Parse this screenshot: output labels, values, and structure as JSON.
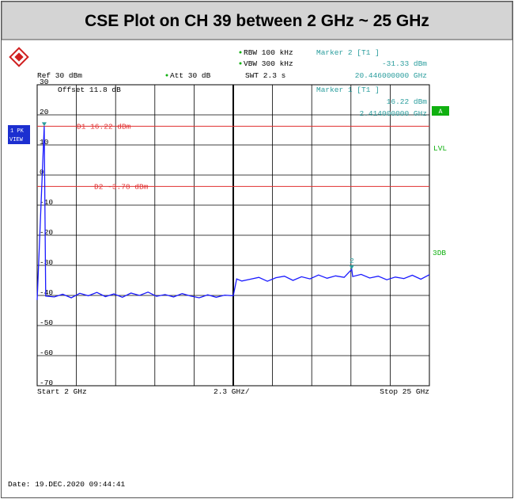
{
  "chart_data": {
    "type": "line",
    "title": "CSE Plot on CH 39 between 2 GHz ~ 25 GHz",
    "x": [
      2,
      2.414,
      2.5,
      3,
      3.5,
      4,
      4.5,
      5,
      5.5,
      6,
      6.5,
      7,
      7.5,
      8,
      8.5,
      9,
      9.5,
      10,
      10.5,
      11,
      11.5,
      12,
      12.5,
      13,
      13.5,
      13.7,
      14,
      14.5,
      15,
      15.5,
      16,
      16.5,
      17,
      17.5,
      18,
      18.5,
      19,
      19.5,
      20,
      20.446,
      20.5,
      21,
      21.5,
      22,
      22.5,
      23,
      23.5,
      24,
      24.5,
      25
    ],
    "series": [
      {
        "color": "#1a1aff",
        "values": [
          -41.5,
          16.22,
          -40.2,
          -40.5,
          -39.6,
          -40.8,
          -39.3,
          -40.1,
          -39.0,
          -40.4,
          -39.5,
          -40.6,
          -39.2,
          -40.0,
          -38.9,
          -40.3,
          -39.7,
          -40.5,
          -39.4,
          -40.2,
          -40.8,
          -39.8,
          -40.6,
          -39.9,
          -40.1,
          -34.5,
          -35.2,
          -34.6,
          -34.0,
          -35.3,
          -34.1,
          -33.6,
          -35.0,
          -33.8,
          -34.5,
          -33.2,
          -34.3,
          -33.5,
          -34.0,
          -31.33,
          -33.7,
          -33.0,
          -34.2,
          -33.6,
          -34.8,
          -33.9,
          -34.4,
          -33.3,
          -34.6,
          -33.1
        ]
      }
    ],
    "xlim": [
      2,
      25
    ],
    "ylim": [
      -70,
      30
    ],
    "yticks": [
      30,
      20,
      10,
      0,
      -10,
      -20,
      -30,
      -40,
      -50,
      -60,
      -70
    ],
    "grid": true,
    "display_lines": [
      {
        "label": "D1 16.22 dBm",
        "value": 16.22,
        "color": "#e03030"
      },
      {
        "label": "D2 -3.78 dBm",
        "value": -3.78,
        "color": "#e03030"
      }
    ],
    "markers": [
      {
        "x": 2.414,
        "value": 16.22,
        "label": "1"
      },
      {
        "x": 20.446,
        "value": -31.33,
        "label": "2"
      }
    ],
    "annotations": {
      "ref": "Ref  30 dBm",
      "att": "Att  30 dB",
      "rbw": "RBW 100 kHz",
      "vbw": "VBW 300 kHz",
      "swt": "SWT 2.3 s",
      "marker2_title": "Marker 2 [T1 ]",
      "marker2_level": "-31.33 dBm",
      "marker2_freq": "20.446000000 GHz",
      "marker1_title": "Marker 1 [T1 ]",
      "marker1_level": "16.22 dBm",
      "marker1_freq": "2.414000000 GHz",
      "offset": "Offset  11.8 dB",
      "trace_badge_1": "1 PK",
      "trace_badge_2": "VIEW",
      "badge_a": "A",
      "lvl": "LVL",
      "db3": "3DB",
      "start": "Start 2 GHz",
      "div": "2.3 GHz/",
      "stop": "Stop 25 GHz",
      "date": "Date: 19.DEC.2020  09:44:41"
    }
  }
}
